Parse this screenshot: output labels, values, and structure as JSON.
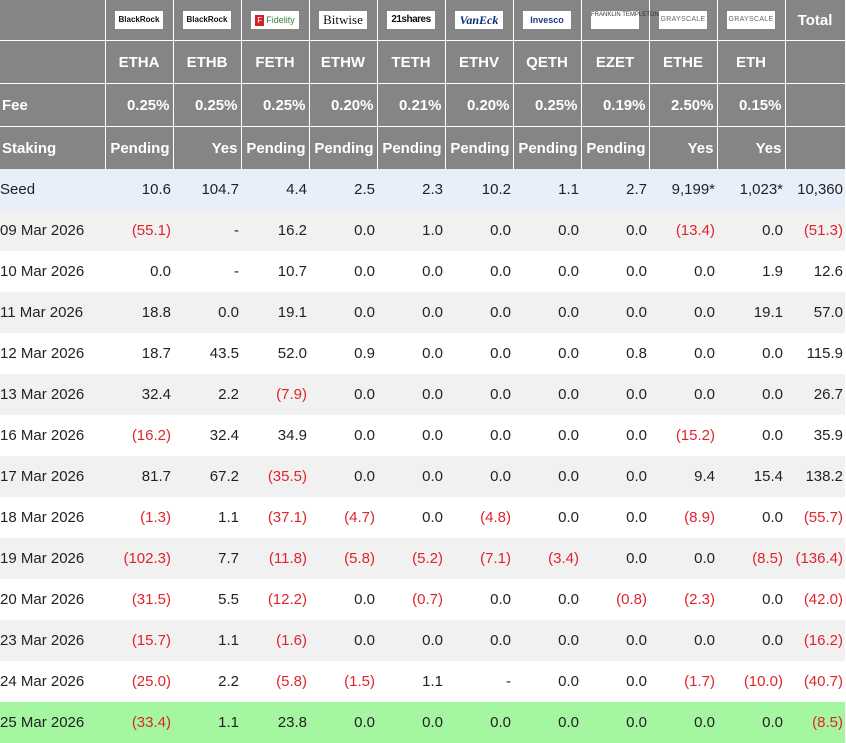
{
  "issuers": [
    {
      "icon": "blackrock-logo",
      "text": "BlackRock",
      "style": ""
    },
    {
      "icon": "blackrock-logo",
      "text": "BlackRock",
      "style": ""
    },
    {
      "icon": "fidelity-logo",
      "text": "Fidelity",
      "style": "fidelity"
    },
    {
      "icon": "bitwise-logo",
      "text": "Bitwise",
      "style": "bitwise"
    },
    {
      "icon": "21shares-logo",
      "text": "21shares",
      "style": "shares"
    },
    {
      "icon": "vaneck-logo",
      "text": "VanEck",
      "style": "vaneck"
    },
    {
      "icon": "invesco-logo",
      "text": "Invesco",
      "style": "invesco"
    },
    {
      "icon": "franklin-templeton-logo",
      "text": "FRANKLIN TEMPLETON",
      "style": "franklin"
    },
    {
      "icon": "grayscale-logo",
      "text": "GRAYSCALE",
      "style": "grayscale"
    },
    {
      "icon": "grayscale-logo",
      "text": "GRAYSCALE",
      "style": "grayscale"
    }
  ],
  "total_label": "Total",
  "tickers": [
    "ETHA",
    "ETHB",
    "FETH",
    "ETHW",
    "TETH",
    "ETHV",
    "QETH",
    "EZET",
    "ETHE",
    "ETH"
  ],
  "fee": {
    "label": "Fee",
    "values": [
      "0.25%",
      "0.25%",
      "0.25%",
      "0.20%",
      "0.21%",
      "0.20%",
      "0.25%",
      "0.19%",
      "2.50%",
      "0.15%"
    ]
  },
  "staking": {
    "label": "Staking",
    "values": [
      "Pending",
      "Yes",
      "Pending",
      "Pending",
      "Pending",
      "Pending",
      "Pending",
      "Pending",
      "Yes",
      "Yes"
    ]
  },
  "rows": [
    {
      "label": "Seed",
      "values": [
        "10.6",
        "104.7",
        "4.4",
        "2.5",
        "2.3",
        "10.2",
        "1.1",
        "2.7",
        "9,199*",
        "1,023*",
        "10,360"
      ],
      "kind": "seed"
    },
    {
      "label": "09 Mar 2026",
      "values": [
        "(55.1)",
        "-",
        "16.2",
        "0.0",
        "1.0",
        "0.0",
        "0.0",
        "0.0",
        "(13.4)",
        "0.0",
        "(51.3)"
      ]
    },
    {
      "label": "10 Mar 2026",
      "values": [
        "0.0",
        "-",
        "10.7",
        "0.0",
        "0.0",
        "0.0",
        "0.0",
        "0.0",
        "0.0",
        "1.9",
        "12.6"
      ]
    },
    {
      "label": "11 Mar 2026",
      "values": [
        "18.8",
        "0.0",
        "19.1",
        "0.0",
        "0.0",
        "0.0",
        "0.0",
        "0.0",
        "0.0",
        "19.1",
        "57.0"
      ]
    },
    {
      "label": "12 Mar 2026",
      "values": [
        "18.7",
        "43.5",
        "52.0",
        "0.9",
        "0.0",
        "0.0",
        "0.0",
        "0.8",
        "0.0",
        "0.0",
        "115.9"
      ]
    },
    {
      "label": "13 Mar 2026",
      "values": [
        "32.4",
        "2.2",
        "(7.9)",
        "0.0",
        "0.0",
        "0.0",
        "0.0",
        "0.0",
        "0.0",
        "0.0",
        "26.7"
      ]
    },
    {
      "label": "16 Mar 2026",
      "values": [
        "(16.2)",
        "32.4",
        "34.9",
        "0.0",
        "0.0",
        "0.0",
        "0.0",
        "0.0",
        "(15.2)",
        "0.0",
        "35.9"
      ]
    },
    {
      "label": "17 Mar 2026",
      "values": [
        "81.7",
        "67.2",
        "(35.5)",
        "0.0",
        "0.0",
        "0.0",
        "0.0",
        "0.0",
        "9.4",
        "15.4",
        "138.2"
      ]
    },
    {
      "label": "18 Mar 2026",
      "values": [
        "(1.3)",
        "1.1",
        "(37.1)",
        "(4.7)",
        "0.0",
        "(4.8)",
        "0.0",
        "0.0",
        "(8.9)",
        "0.0",
        "(55.7)"
      ]
    },
    {
      "label": "19 Mar 2026",
      "values": [
        "(102.3)",
        "7.7",
        "(11.8)",
        "(5.8)",
        "(5.2)",
        "(7.1)",
        "(3.4)",
        "0.0",
        "0.0",
        "(8.5)",
        "(136.4)"
      ]
    },
    {
      "label": "20 Mar 2026",
      "values": [
        "(31.5)",
        "5.5",
        "(12.2)",
        "0.0",
        "(0.7)",
        "0.0",
        "0.0",
        "(0.8)",
        "(2.3)",
        "0.0",
        "(42.0)"
      ]
    },
    {
      "label": "23 Mar 2026",
      "values": [
        "(15.7)",
        "1.1",
        "(1.6)",
        "0.0",
        "0.0",
        "0.0",
        "0.0",
        "0.0",
        "0.0",
        "0.0",
        "(16.2)"
      ]
    },
    {
      "label": "24 Mar 2026",
      "values": [
        "(25.0)",
        "2.2",
        "(5.8)",
        "(1.5)",
        "1.1",
        "-",
        "0.0",
        "0.0",
        "(1.7)",
        "(10.0)",
        "(40.7)"
      ]
    },
    {
      "label": "25 Mar 2026",
      "values": [
        "(33.4)",
        "1.1",
        "23.8",
        "0.0",
        "0.0",
        "0.0",
        "0.0",
        "0.0",
        "0.0",
        "0.0",
        "(8.5)"
      ],
      "kind": "latest"
    }
  ],
  "colors": {
    "header_gray": "#858585",
    "negative": "#e0242b",
    "seed_row": "#e9eefb",
    "latest_row": "#a4f7a0"
  }
}
